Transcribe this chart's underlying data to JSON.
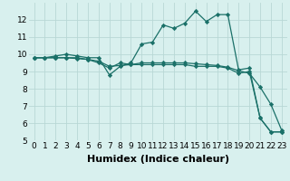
{
  "xlabel": "Humidex (Indice chaleur)",
  "ylabel": "",
  "background_color": "#d8f0ee",
  "grid_color": "#b8d8d5",
  "line_color": "#1a7068",
  "xlim": [
    -0.5,
    23.5
  ],
  "ylim": [
    5,
    13
  ],
  "yticks": [
    5,
    6,
    7,
    8,
    9,
    10,
    11,
    12
  ],
  "xtick_labels": [
    "0",
    "1",
    "2",
    "3",
    "4",
    "5",
    "6",
    "7",
    "8",
    "9",
    "10",
    "11",
    "12",
    "13",
    "14",
    "15",
    "16",
    "17",
    "18",
    "19",
    "20",
    "21",
    "22",
    "23"
  ],
  "series": [
    [
      9.8,
      9.8,
      9.9,
      10.0,
      9.9,
      9.8,
      9.8,
      8.8,
      9.3,
      9.5,
      10.6,
      10.7,
      11.7,
      11.5,
      11.8,
      12.5,
      11.9,
      12.3,
      12.3,
      9.1,
      9.2,
      6.3,
      5.5,
      5.5
    ],
    [
      9.8,
      9.8,
      9.8,
      9.8,
      9.75,
      9.7,
      9.6,
      9.3,
      9.35,
      9.4,
      9.5,
      9.5,
      9.5,
      9.5,
      9.5,
      9.45,
      9.4,
      9.35,
      9.25,
      9.05,
      8.9,
      8.1,
      7.1,
      5.6
    ],
    [
      9.8,
      9.8,
      9.8,
      9.8,
      9.8,
      9.7,
      9.5,
      9.2,
      9.5,
      9.4,
      9.4,
      9.4,
      9.4,
      9.4,
      9.4,
      9.3,
      9.3,
      9.3,
      9.2,
      8.9,
      9.0,
      6.3,
      5.5,
      5.5
    ]
  ],
  "tick_fontsize": 6.5,
  "xlabel_fontsize": 8,
  "marker": "D",
  "markersize": 2.2,
  "linewidth": 0.9
}
